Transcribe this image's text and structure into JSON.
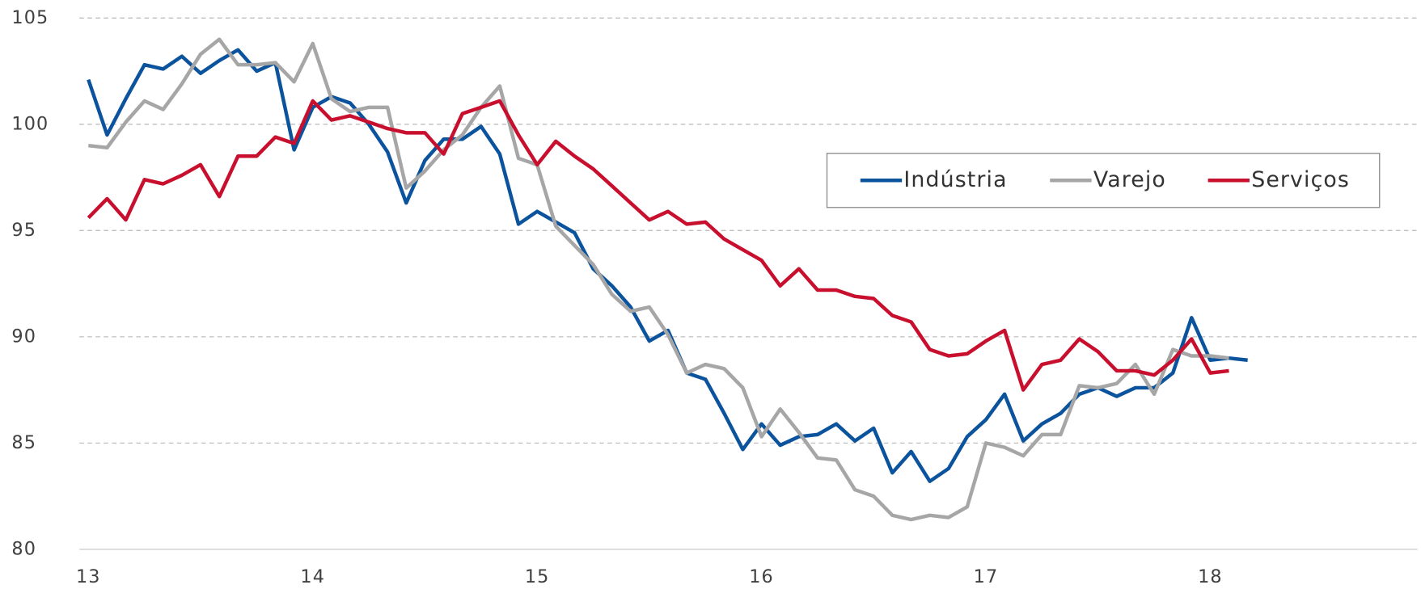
{
  "chart_data": {
    "type": "line",
    "categories": [
      "13",
      null,
      null,
      null,
      null,
      null,
      null,
      null,
      null,
      null,
      null,
      null,
      "14",
      null,
      null,
      null,
      null,
      null,
      null,
      null,
      null,
      null,
      null,
      null,
      "15",
      null,
      null,
      null,
      null,
      null,
      null,
      null,
      null,
      null,
      null,
      null,
      "16",
      null,
      null,
      null,
      null,
      null,
      null,
      null,
      null,
      null,
      null,
      null,
      "17",
      null,
      null,
      null,
      null,
      null,
      null,
      null,
      null,
      null,
      null,
      null,
      "18",
      null,
      null
    ],
    "series": [
      {
        "name": "Indústria",
        "color": "#0b539d",
        "values": [
          102.1,
          99.5,
          101.2,
          102.8,
          102.6,
          103.2,
          102.4,
          103.0,
          103.5,
          102.5,
          102.9,
          98.8,
          100.8,
          101.3,
          101.0,
          100.0,
          98.7,
          96.3,
          98.3,
          99.3,
          99.3,
          99.9,
          98.6,
          95.3,
          95.9,
          95.4,
          94.9,
          93.2,
          92.4,
          91.4,
          89.8,
          90.3,
          88.3,
          88.0,
          86.4,
          84.7,
          85.9,
          84.9,
          85.3,
          85.4,
          85.9,
          85.1,
          85.7,
          83.6,
          84.6,
          83.2,
          83.8,
          85.3,
          86.1,
          87.3,
          85.1,
          85.9,
          86.4,
          87.3,
          87.6,
          87.2,
          87.6,
          87.6,
          88.3,
          90.9,
          88.9,
          89.0,
          88.9
        ]
      },
      {
        "name": "Varejo",
        "color": "#a6a6a6",
        "values": [
          99.0,
          98.9,
          100.1,
          101.1,
          100.7,
          101.9,
          103.3,
          104.0,
          102.8,
          102.8,
          102.9,
          102.0,
          103.8,
          101.2,
          100.6,
          100.8,
          100.8,
          97.0,
          97.8,
          98.8,
          99.5,
          100.8,
          101.8,
          98.4,
          98.1,
          95.2,
          94.3,
          93.4,
          92.0,
          91.2,
          91.4,
          90.1,
          88.3,
          88.7,
          88.5,
          87.6,
          85.3,
          86.6,
          85.5,
          84.3,
          84.2,
          82.8,
          82.5,
          81.6,
          81.4,
          81.6,
          81.5,
          82.0,
          85.0,
          84.8,
          84.4,
          85.4,
          85.4,
          87.7,
          87.6,
          87.8,
          88.7,
          87.3,
          89.4,
          89.1,
          89.1,
          89.0,
          null
        ]
      },
      {
        "name": "Serviços",
        "color": "#c8102e",
        "values": [
          95.6,
          96.5,
          95.5,
          97.4,
          97.2,
          97.6,
          98.1,
          96.6,
          98.5,
          98.5,
          99.4,
          99.1,
          101.1,
          100.2,
          100.4,
          100.1,
          99.8,
          99.6,
          99.6,
          98.6,
          100.5,
          100.8,
          101.1,
          99.5,
          98.1,
          99.2,
          98.5,
          97.9,
          97.1,
          96.3,
          95.5,
          95.9,
          95.3,
          95.4,
          94.6,
          94.1,
          93.6,
          92.4,
          93.2,
          92.2,
          92.2,
          91.9,
          91.8,
          91.0,
          90.7,
          89.4,
          89.1,
          89.2,
          89.8,
          90.3,
          87.5,
          88.7,
          88.9,
          89.9,
          89.3,
          88.4,
          88.4,
          88.2,
          88.9,
          89.9,
          88.3,
          88.4,
          null
        ]
      }
    ],
    "ylim": [
      80,
      105
    ],
    "yticks": [
      80,
      85,
      90,
      95,
      100,
      105
    ],
    "grid": true,
    "legend": "upper right"
  }
}
